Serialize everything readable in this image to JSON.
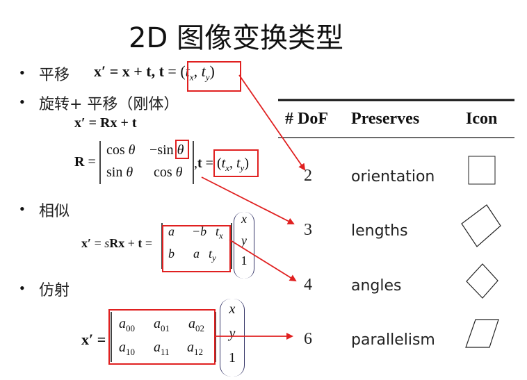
{
  "title": "2D 图像变换类型",
  "bullets": [
    {
      "label": "平移",
      "equation": "x′ = x + t, t = (tx, ty)"
    },
    {
      "label": "旋转+ 平移（刚体）",
      "equation1": "x′ = Rx + t",
      "equation2": "R = [cos θ  −sin θ; sin θ  cos θ], t = (tx, ty)"
    },
    {
      "label": "相似",
      "equation": "x′ = sRx + t = [a −b tx; b a ty](x y 1)"
    },
    {
      "label": "仿射",
      "equation": "x′ = [a00 a01 a02; a10 a11 a12](x y 1)"
    }
  ],
  "table": {
    "headers": [
      "# DoF",
      "Preserves",
      "Icon"
    ],
    "rows": [
      {
        "dof": "2",
        "preserves": "orientation",
        "icon": "square-icon"
      },
      {
        "dof": "3",
        "preserves": "lengths",
        "icon": "rotated-square-icon"
      },
      {
        "dof": "4",
        "preserves": "angles",
        "icon": "scaled-rotated-square-icon"
      },
      {
        "dof": "6",
        "preserves": "parallelism",
        "icon": "parallelogram-icon"
      }
    ]
  },
  "colors": {
    "highlight": "#e02020",
    "text": "#111111"
  }
}
